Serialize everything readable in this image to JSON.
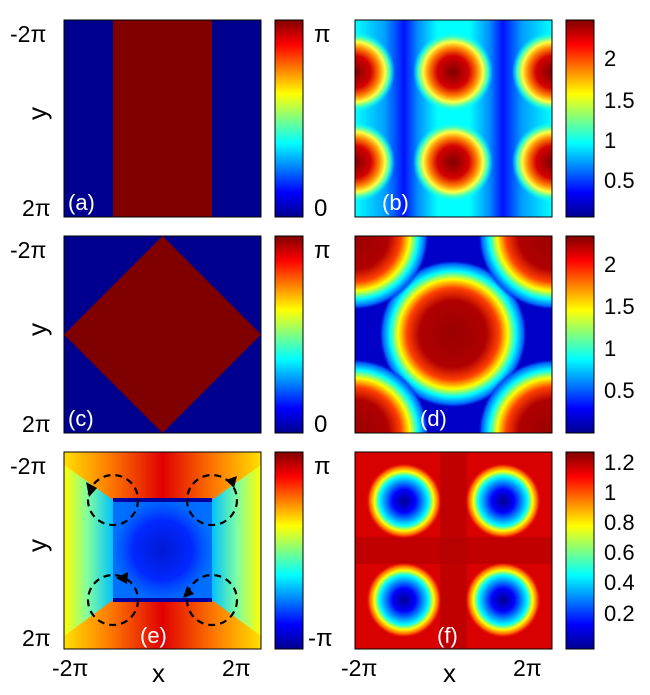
{
  "colors": {
    "phase_low": "#00008f",
    "phase_high": "#800000",
    "text_light": "#ffffff",
    "arrow": "#000000"
  },
  "colorbar_stops": [
    "#00008f",
    "#0000ff",
    "#0080ff",
    "#00ffff",
    "#80ff80",
    "#ffff00",
    "#ff8000",
    "#ff0000",
    "#800000"
  ],
  "axis_labels": {
    "y": "y",
    "x": "x"
  },
  "y_ticks": [
    "-2π",
    "2π"
  ],
  "x_ticks": [
    "-2π",
    "2π"
  ],
  "chart_data": [
    {
      "id": "a",
      "type": "heatmap",
      "panel_label": "(a)",
      "quantity": "phase",
      "xlim": [
        "-2π",
        "2π"
      ],
      "ylim": [
        "-2π",
        "2π"
      ],
      "description_values": {
        "pattern": "vertical-stripe",
        "inside": "π",
        "outside": "0"
      },
      "colorbar": {
        "ticks": [
          "π",
          "0"
        ],
        "range": [
          0,
          3.1416
        ]
      }
    },
    {
      "id": "b",
      "type": "heatmap",
      "panel_label": "(b)",
      "quantity": "density",
      "xlim": [
        "-2π",
        "2π"
      ],
      "ylim": [
        "-2π",
        "2π"
      ],
      "colorbar": {
        "ticks": [
          "2",
          "1.5",
          "1",
          "0.5"
        ],
        "range": [
          0.05,
          2.45
        ]
      }
    },
    {
      "id": "c",
      "type": "heatmap",
      "panel_label": "(c)",
      "quantity": "phase",
      "xlim": [
        "-2π",
        "2π"
      ],
      "ylim": [
        "-2π",
        "2π"
      ],
      "description_values": {
        "pattern": "diamond",
        "inside": "π",
        "outside": "0"
      },
      "colorbar": {
        "ticks": [
          "π",
          "0"
        ],
        "range": [
          0,
          3.1416
        ]
      }
    },
    {
      "id": "d",
      "type": "heatmap",
      "panel_label": "(d)",
      "quantity": "density",
      "xlim": [
        "-2π",
        "2π"
      ],
      "ylim": [
        "-2π",
        "2π"
      ],
      "colorbar": {
        "ticks": [
          "2",
          "1.5",
          "1",
          "0.5"
        ],
        "range": [
          0.05,
          2.3
        ]
      }
    },
    {
      "id": "e",
      "type": "heatmap",
      "panel_label": "(e)",
      "quantity": "phase",
      "xlim": [
        "-2π",
        "2π"
      ],
      "ylim": [
        "-2π",
        "2π"
      ],
      "colorbar": {
        "ticks": [
          "π",
          "-π"
        ],
        "range": [
          -3.1416,
          3.1416
        ]
      }
    },
    {
      "id": "f",
      "type": "heatmap",
      "panel_label": "(f)",
      "quantity": "density",
      "xlim": [
        "-2π",
        "2π"
      ],
      "ylim": [
        "-2π",
        "2π"
      ],
      "colorbar": {
        "ticks": [
          "1.2",
          "1",
          "0.8",
          "0.6",
          "0.4",
          "0.2"
        ],
        "range": [
          0.02,
          1.28
        ]
      }
    }
  ]
}
